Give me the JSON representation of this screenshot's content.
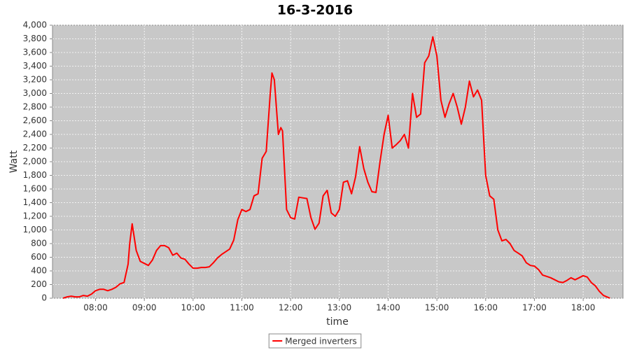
{
  "chart_data": {
    "type": "line",
    "title": "16-3-2016",
    "x_label": "time",
    "y_label": "Watt",
    "x": [
      "07:20",
      "07:25",
      "07:30",
      "07:35",
      "07:40",
      "07:45",
      "07:50",
      "07:55",
      "08:00",
      "08:05",
      "08:10",
      "08:15",
      "08:20",
      "08:25",
      "08:30",
      "08:35",
      "08:40",
      "08:42",
      "08:45",
      "08:50",
      "08:55",
      "09:00",
      "09:05",
      "09:10",
      "09:15",
      "09:20",
      "09:25",
      "09:30",
      "09:35",
      "09:40",
      "09:45",
      "09:50",
      "09:55",
      "10:00",
      "10:05",
      "10:10",
      "10:15",
      "10:20",
      "10:25",
      "10:30",
      "10:35",
      "10:40",
      "10:45",
      "10:50",
      "10:55",
      "11:00",
      "11:05",
      "11:10",
      "11:15",
      "11:20",
      "11:25",
      "11:30",
      "11:35",
      "11:37",
      "11:40",
      "11:45",
      "11:48",
      "11:50",
      "11:55",
      "12:00",
      "12:05",
      "12:10",
      "12:15",
      "12:20",
      "12:25",
      "12:30",
      "12:35",
      "12:40",
      "12:45",
      "12:50",
      "12:55",
      "13:00",
      "13:05",
      "13:10",
      "13:15",
      "13:20",
      "13:25",
      "13:30",
      "13:35",
      "13:40",
      "13:45",
      "13:50",
      "13:55",
      "14:00",
      "14:05",
      "14:10",
      "14:15",
      "14:20",
      "14:25",
      "14:30",
      "14:35",
      "14:40",
      "14:45",
      "14:50",
      "14:55",
      "15:00",
      "15:05",
      "15:10",
      "15:15",
      "15:20",
      "15:25",
      "15:30",
      "15:35",
      "15:40",
      "15:45",
      "15:50",
      "15:55",
      "16:00",
      "16:05",
      "16:10",
      "16:15",
      "16:20",
      "16:25",
      "16:30",
      "16:35",
      "16:40",
      "16:45",
      "16:50",
      "16:55",
      "17:00",
      "17:05",
      "17:10",
      "17:15",
      "17:20",
      "17:25",
      "17:30",
      "17:35",
      "17:40",
      "17:45",
      "17:50",
      "17:55",
      "18:00",
      "18:05",
      "18:10",
      "18:15",
      "18:20",
      "18:25",
      "18:33"
    ],
    "series": [
      {
        "name": "Merged inverters",
        "color": "#ff0000",
        "values": [
          0,
          20,
          30,
          20,
          20,
          40,
          30,
          60,
          110,
          130,
          130,
          110,
          130,
          160,
          210,
          230,
          500,
          800,
          1090,
          700,
          540,
          510,
          480,
          560,
          700,
          770,
          770,
          740,
          630,
          660,
          590,
          570,
          500,
          440,
          440,
          450,
          450,
          460,
          520,
          590,
          640,
          680,
          720,
          850,
          1150,
          1300,
          1270,
          1300,
          1500,
          1530,
          2050,
          2150,
          3000,
          3300,
          3200,
          2400,
          2500,
          2450,
          1300,
          1180,
          1160,
          1480,
          1470,
          1460,
          1180,
          1010,
          1100,
          1500,
          1580,
          1250,
          1200,
          1300,
          1700,
          1720,
          1530,
          1780,
          2220,
          1900,
          1700,
          1560,
          1550,
          2000,
          2400,
          2680,
          2200,
          2250,
          2310,
          2400,
          2200,
          3000,
          2650,
          2700,
          3450,
          3550,
          3830,
          3550,
          2900,
          2650,
          2850,
          3000,
          2800,
          2550,
          2800,
          3180,
          2950,
          3050,
          2900,
          1800,
          1500,
          1450,
          1000,
          840,
          860,
          800,
          700,
          660,
          620,
          520,
          480,
          470,
          420,
          340,
          320,
          300,
          270,
          240,
          230,
          260,
          300,
          270,
          300,
          330,
          310,
          230,
          180,
          100,
          40,
          0
        ]
      }
    ],
    "xlim": [
      "07:07",
      "18:49"
    ],
    "xticks": [
      "08:00",
      "09:00",
      "10:00",
      "11:00",
      "12:00",
      "13:00",
      "14:00",
      "15:00",
      "16:00",
      "17:00",
      "18:00"
    ],
    "ylim": [
      0,
      4000
    ],
    "yticks": [
      0,
      200,
      400,
      600,
      800,
      {
        "value": 1000,
        "label": "1,000"
      },
      {
        "value": 1200,
        "label": "1,200"
      },
      {
        "value": 1400,
        "label": "1,400"
      },
      {
        "value": 1600,
        "label": "1,600"
      },
      {
        "value": 1800,
        "label": "1,800"
      },
      {
        "value": 2000,
        "label": "2,000"
      },
      {
        "value": 2200,
        "label": "2,200"
      },
      {
        "value": 2400,
        "label": "2,400"
      },
      {
        "value": 2600,
        "label": "2,600"
      },
      {
        "value": 2800,
        "label": "2,800"
      },
      {
        "value": 3000,
        "label": "3,000"
      },
      {
        "value": 3200,
        "label": "3,200"
      },
      {
        "value": 3400,
        "label": "3,400"
      },
      {
        "value": 3600,
        "label": "3,600"
      },
      {
        "value": 3800,
        "label": "3,800"
      },
      {
        "value": 4000,
        "label": "4,000"
      }
    ],
    "grid": true,
    "legend": "bottom"
  }
}
